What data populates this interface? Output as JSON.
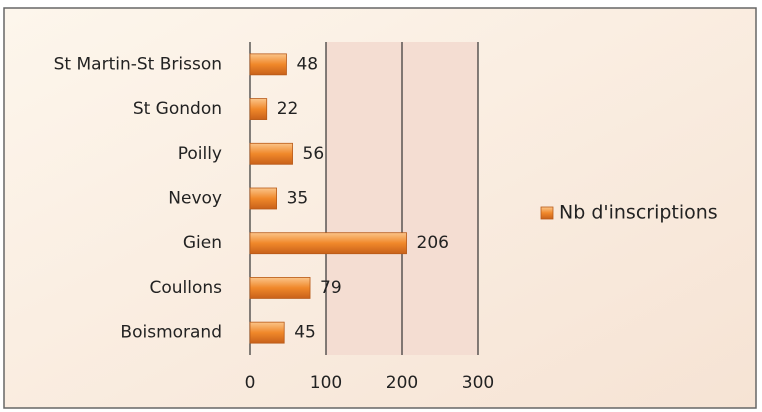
{
  "chart_data": {
    "type": "bar",
    "orientation": "horizontal",
    "categories": [
      "St Martin-St Brisson",
      "St Gondon",
      "Poilly",
      "Nevoy",
      "Gien",
      "Coullons",
      "Boismorand"
    ],
    "series": [
      {
        "name": "Nb d'inscriptions",
        "color": "#f0882a",
        "values": [
          48,
          22,
          56,
          35,
          206,
          79,
          45
        ]
      }
    ],
    "xlim": [
      0,
      300
    ],
    "xticks": [
      0,
      100,
      200,
      300
    ],
    "grid": true,
    "legend": "right"
  }
}
